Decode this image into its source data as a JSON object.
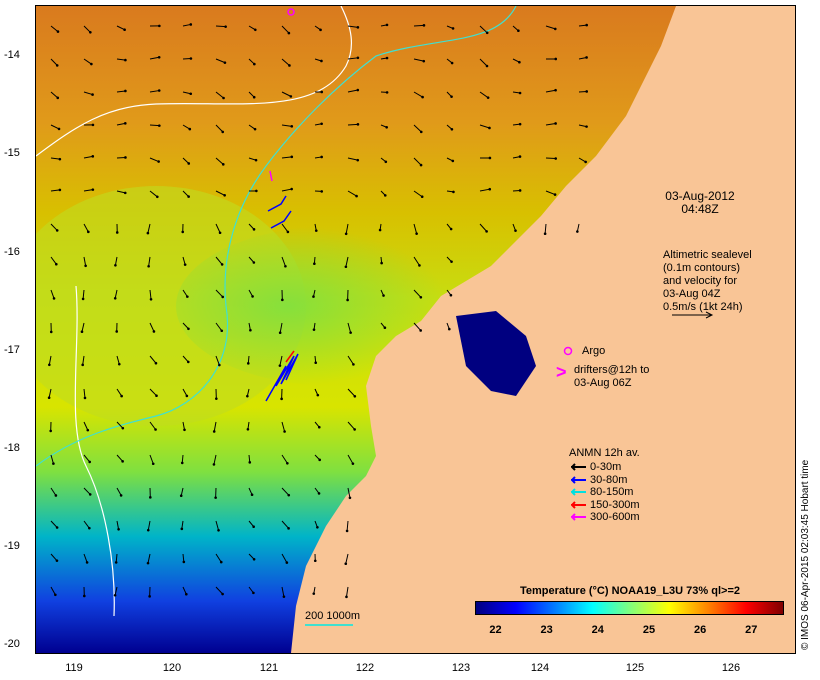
{
  "map": {
    "lat_ticks": [
      "-14",
      "-15",
      "-16",
      "-17",
      "-18",
      "-19",
      "-20"
    ],
    "lon_ticks": [
      "119",
      "120",
      "121",
      "122",
      "123",
      "124",
      "125",
      "126"
    ],
    "lat_range": [
      -20.1,
      -13.6
    ],
    "lon_range": [
      118.6,
      126.6
    ]
  },
  "timestamp": [
    "03-Aug-2012",
    "04:48Z"
  ],
  "altimetric_note": [
    "Altimetric sealevel",
    "(0.1m contours)",
    "and velocity for",
    "03-Aug 04Z",
    "0.5m/s (1kt 24h)"
  ],
  "argo_label": "Argo",
  "drifters_label": [
    "drifters@12h to",
    "03-Aug 06Z"
  ],
  "anmn_legend": {
    "title": "ANMN 12h av.",
    "items": [
      {
        "label": "0-30m",
        "color": "#000000"
      },
      {
        "label": "30-80m",
        "color": "#0000ff"
      },
      {
        "label": "80-150m",
        "color": "#00e0e0"
      },
      {
        "label": "150-300m",
        "color": "#ff0000"
      },
      {
        "label": "300-600m",
        "color": "#ff00ff"
      }
    ]
  },
  "colorbar": {
    "title": "Temperature (°C) NOAA19_L3U 73% ql>=2",
    "ticks": [
      "22",
      "23",
      "24",
      "25",
      "26",
      "27"
    ],
    "range": [
      21.6,
      27.6
    ]
  },
  "scale_label": "200  1000m",
  "credit": "© IMOS 06-Apr-2015 02:03:45 Hobart time",
  "colors": {
    "land": "#f9c596",
    "contour_200m": "#40e0d0",
    "contour_1000m": "#ffffff"
  }
}
